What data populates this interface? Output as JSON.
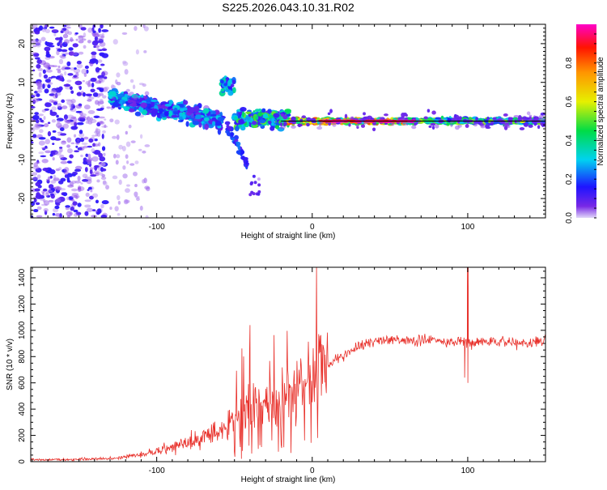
{
  "title": "S225.2026.043.10.31.R02",
  "colors": {
    "snr_line": "#e8302a",
    "frame": "#000000",
    "background": "#ffffff"
  },
  "chart_data": [
    {
      "type": "heatmap",
      "name": "spectrogram",
      "title": "S225.2026.043.10.31.R02",
      "xlabel": "Height of straight line (km)",
      "ylabel": "Frequency (Hz)",
      "xlim": [
        -181,
        150
      ],
      "ylim": [
        -25,
        25
      ],
      "x_ticks": [
        -100,
        0,
        100
      ],
      "x_tick_labels": [
        "-100",
        "0",
        "100"
      ],
      "y_ticks": [
        -20,
        -10,
        0,
        10,
        20
      ],
      "y_tick_labels": [
        "-20",
        "-10",
        "0",
        "10",
        "20"
      ],
      "reference_line_hz": 0,
      "colorbar": {
        "label": "Normalized spectral amplitude",
        "range": [
          0,
          1
        ],
        "ticks": [
          0.0,
          0.2,
          0.4,
          0.6,
          0.8
        ],
        "tick_labels": [
          "0.0",
          "0.2",
          "0.4",
          "0.6",
          "0.8"
        ]
      },
      "features": [
        {
          "x": [
            -181,
            -132
          ],
          "freq_center_hz": 0,
          "spread_hz": 25,
          "amplitude": 0.2,
          "description": "diffuse noise"
        },
        {
          "x": [
            -130,
            -60
          ],
          "freq_center_hz": 5,
          "spread_hz": 4,
          "amplitude": 0.3,
          "description": "descending echo trail"
        },
        {
          "x": [
            -57,
            -52
          ],
          "freq_center_hz": 9,
          "spread_hz": 1.5,
          "amplitude": 0.3
        },
        {
          "x": [
            -55,
            -44
          ],
          "freq_center_hz": -10,
          "spread_hz": 3,
          "amplitude": 0.15
        },
        {
          "x": [
            -20,
            150
          ],
          "freq_center_hz": 0,
          "spread_hz": 1,
          "amplitude": 0.6,
          "description": "narrow band near 0 Hz"
        }
      ]
    },
    {
      "type": "line",
      "name": "snr",
      "xlabel": "Height of straight line (km)",
      "ylabel": "SNR (10 * v/v)",
      "xlim": [
        -181,
        150
      ],
      "ylim": [
        0,
        1480
      ],
      "x_ticks": [
        -100,
        0,
        100
      ],
      "x_tick_labels": [
        "-100",
        "0",
        "100"
      ],
      "y_ticks": [
        0,
        200,
        400,
        600,
        800,
        1000,
        1200,
        1400
      ],
      "y_tick_labels": [
        "0",
        "200",
        "400",
        "600",
        "800",
        "1000",
        "1200",
        "1400"
      ],
      "series": [
        {
          "name": "SNR",
          "x": [
            -181,
            -170,
            -160,
            -150,
            -140,
            -130,
            -120,
            -110,
            -100,
            -90,
            -80,
            -70,
            -60,
            -50,
            -45,
            -40,
            -35,
            -30,
            -25,
            -20,
            -15,
            -10,
            -5,
            0,
            5,
            10,
            15,
            20,
            25,
            30,
            40,
            50,
            60,
            70,
            80,
            90,
            95,
            100,
            105,
            110,
            120,
            130,
            140,
            150
          ],
          "values": [
            15,
            15,
            15,
            18,
            20,
            25,
            35,
            55,
            80,
            110,
            150,
            190,
            250,
            320,
            400,
            430,
            380,
            420,
            480,
            430,
            490,
            600,
            650,
            700,
            740,
            720,
            780,
            800,
            850,
            880,
            920,
            930,
            920,
            920,
            930,
            900,
            920,
            910,
            900,
            920,
            910,
            900,
            910,
            920
          ]
        }
      ],
      "annotations": [
        {
          "x": -40,
          "peak": 1040
        },
        {
          "x": 98,
          "dip": 640
        },
        {
          "x": 100,
          "spike": 1480
        }
      ]
    }
  ]
}
